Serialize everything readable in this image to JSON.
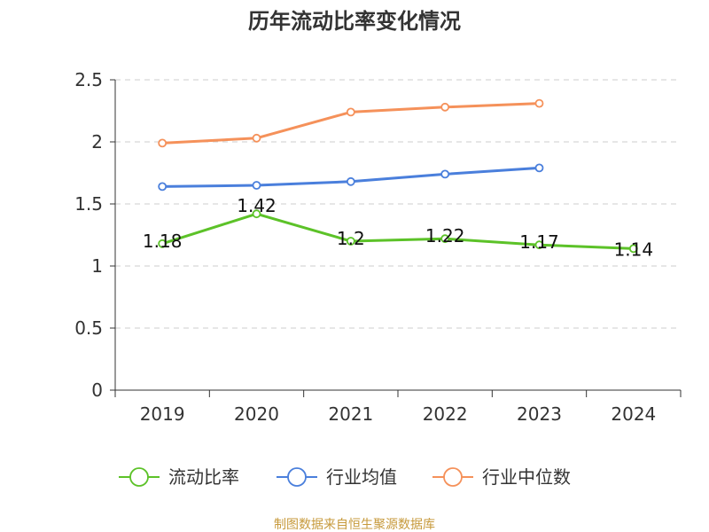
{
  "chart_data": {
    "type": "line",
    "title": "历年流动比率变化情况",
    "categories": [
      "2019",
      "2020",
      "2021",
      "2022",
      "2023",
      "2024"
    ],
    "ylim": [
      0,
      2.5
    ],
    "yticks": [
      "0",
      "0.5",
      "1",
      "1.5",
      "2",
      "2.5"
    ],
    "grid": "horizontal dashed",
    "legend_position": "bottom",
    "series": [
      {
        "name": "流动比率",
        "color": "#5cc228",
        "values": [
          1.18,
          1.42,
          1.2,
          1.22,
          1.17,
          1.14
        ],
        "labels": [
          "1.18",
          "1.42",
          "1.2",
          "1.22",
          "1.17",
          "1.14"
        ]
      },
      {
        "name": "行业均值",
        "color": "#4a7fdc",
        "values": [
          1.64,
          1.65,
          1.68,
          1.74,
          1.79,
          null
        ]
      },
      {
        "name": "行业中位数",
        "color": "#f5915a",
        "values": [
          1.99,
          2.03,
          2.24,
          2.28,
          2.31,
          null
        ]
      }
    ]
  },
  "footer": {
    "source": "制图数据来自恒生聚源数据库"
  }
}
